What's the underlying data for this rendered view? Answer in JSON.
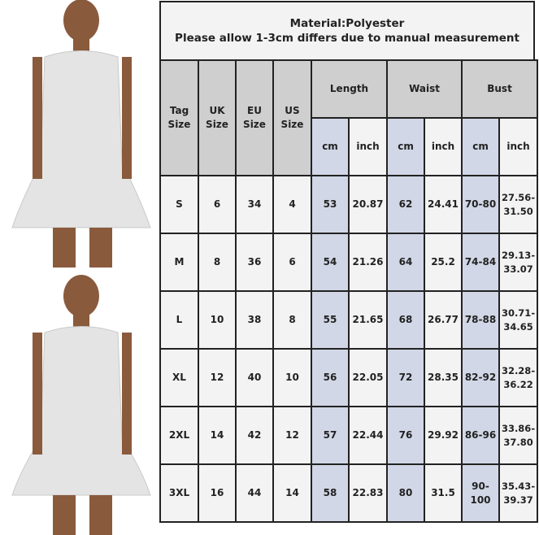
{
  "header": {
    "line1": "Material:Polyester",
    "line2": "Please allow 1-3cm differs due to manual measurement"
  },
  "columns": {
    "tag_size": "Tag Size",
    "uk_size": "UK Size",
    "eu_size": "EU Size",
    "us_size": "US Size",
    "length": "Length",
    "waist": "Waist",
    "bust": "Bust",
    "cm": "cm",
    "inch": "inch"
  },
  "colors": {
    "header_gray": "#cfcfcf",
    "cm_blue": "#d1d7e6",
    "cell": "#f3f3f3"
  },
  "rows": [
    [
      "S",
      "6",
      "34",
      "4",
      "53",
      "20.87",
      "62",
      "24.41",
      "70-80",
      "27.56-31.50"
    ],
    [
      "M",
      "8",
      "36",
      "6",
      "54",
      "21.26",
      "64",
      "25.2",
      "74-84",
      "29.13-33.07"
    ],
    [
      "L",
      "10",
      "38",
      "8",
      "55",
      "21.65",
      "68",
      "26.77",
      "78-88",
      "30.71-34.65"
    ],
    [
      "XL",
      "12",
      "40",
      "10",
      "56",
      "22.05",
      "72",
      "28.35",
      "82-92",
      "32.28-36.22"
    ],
    [
      "2XL",
      "14",
      "42",
      "12",
      "57",
      "22.44",
      "76",
      "29.92",
      "86-96",
      "33.86-37.80"
    ],
    [
      "3XL",
      "16",
      "44",
      "14",
      "58",
      "22.83",
      "80",
      "31.5",
      "90-100",
      "35.43-39.37"
    ]
  ]
}
